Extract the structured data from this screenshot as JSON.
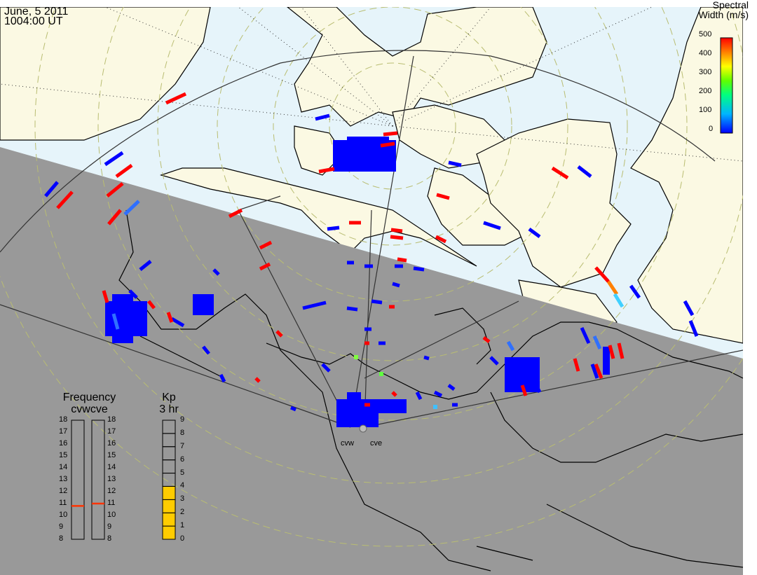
{
  "header": {
    "date": "June, 5 2011",
    "time": "1004:00 UT"
  },
  "colorbar": {
    "title_line1": "Spectral",
    "title_line2": "Width (m/s)",
    "ticks": [
      "500",
      "400",
      "300",
      "200",
      "100",
      "0"
    ],
    "colors": [
      "#ff0000",
      "#ff7f00",
      "#ffff00",
      "#00ff00",
      "#00ffff",
      "#0000ff"
    ]
  },
  "frequency_panel": {
    "title": "Frequency",
    "subtitle": "cvwcve",
    "ticks": [
      "18",
      "17",
      "16",
      "15",
      "14",
      "13",
      "12",
      "11",
      "10",
      "9",
      "8"
    ],
    "cvw_value_mhz": 10.8,
    "cve_value_mhz": 11.0,
    "marker_color": "#ff3300"
  },
  "kp_panel": {
    "title": "Kp",
    "subtitle": "3 hr",
    "ticks": [
      "9",
      "8",
      "7",
      "6",
      "5",
      "4",
      "3",
      "2",
      "1",
      "0"
    ],
    "value": 4,
    "fill_color": "#ffcc00"
  },
  "radars": {
    "west": "cvw",
    "east": "cve"
  },
  "colors": {
    "day_ocean": "#e6f4fa",
    "day_land": "#fbf9e3",
    "night": "#999999",
    "grid_circles": "#bfc27a",
    "low_width": "#0000ff",
    "high_width": "#ff0000"
  }
}
